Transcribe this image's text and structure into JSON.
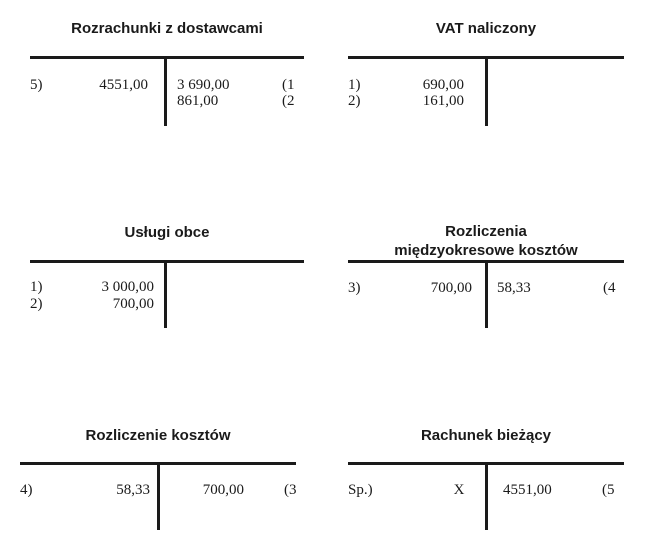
{
  "accounts": {
    "rozrachunki": {
      "title": "Rozrachunki z dostawcami",
      "debit": [
        {
          "ref": "5)",
          "amount": "4551,00"
        }
      ],
      "credit": [
        {
          "amount": "3 690,00",
          "ref": "(1"
        },
        {
          "amount": "861,00",
          "ref": "(2"
        }
      ]
    },
    "vat": {
      "title": "VAT naliczony",
      "debit": [
        {
          "ref": "1)",
          "amount": "690,00"
        },
        {
          "ref": "2)",
          "amount": "161,00"
        }
      ],
      "credit": []
    },
    "uslugi": {
      "title": "Usługi obce",
      "debit": [
        {
          "ref": "1)",
          "amount": "3 000,00"
        },
        {
          "ref": "2)",
          "amount": "700,00"
        }
      ],
      "credit": []
    },
    "rmk": {
      "title_lines": [
        "Rozliczenia",
        "międzyokresowe kosztów"
      ],
      "debit": [
        {
          "ref": "3)",
          "amount": "700,00"
        }
      ],
      "credit": [
        {
          "amount": "58,33",
          "ref": "(4"
        }
      ]
    },
    "rozliczenie": {
      "title": "Rozliczenie kosztów",
      "debit": [
        {
          "ref": "4)",
          "amount": "58,33"
        }
      ],
      "credit": [
        {
          "amount": "700,00",
          "ref": "(3"
        }
      ]
    },
    "rachunek": {
      "title": "Rachunek bieżący",
      "debit": [
        {
          "ref": "Sp.)",
          "amount": "X"
        }
      ],
      "credit": [
        {
          "amount": "4551,00",
          "ref": "(5"
        }
      ]
    }
  }
}
